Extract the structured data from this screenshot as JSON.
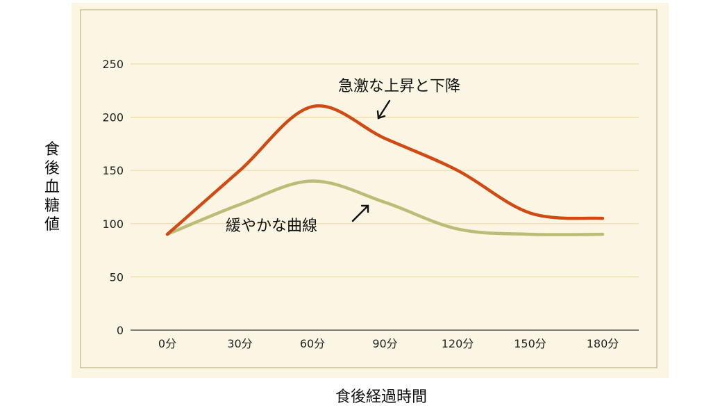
{
  "chart_data": {
    "type": "line",
    "title": "",
    "xlabel": "食後経過時間",
    "ylabel": "食後血糖値",
    "categories": [
      "0分",
      "30分",
      "60分",
      "90分",
      "120分",
      "150分",
      "180分"
    ],
    "y_ticks": [
      0,
      50,
      100,
      150,
      200,
      250
    ],
    "ylim": [
      0,
      250
    ],
    "grid": true,
    "legend": "none",
    "colors": {
      "background": "#fbf5e3",
      "frame": "#c9bf96",
      "grid": "#eedaa6"
    },
    "series": [
      {
        "values": [
          90,
          150,
          210,
          180,
          150,
          110,
          105
        ],
        "color": "#d14a14"
      },
      {
        "values": [
          90,
          118,
          140,
          120,
          95,
          90,
          90
        ],
        "color": "#b9bd76"
      }
    ],
    "annotations": [
      {
        "text": "急激な上昇と下降",
        "arrow": "down-left"
      },
      {
        "text": "緩やかな曲線",
        "arrow": "up-right"
      }
    ]
  }
}
